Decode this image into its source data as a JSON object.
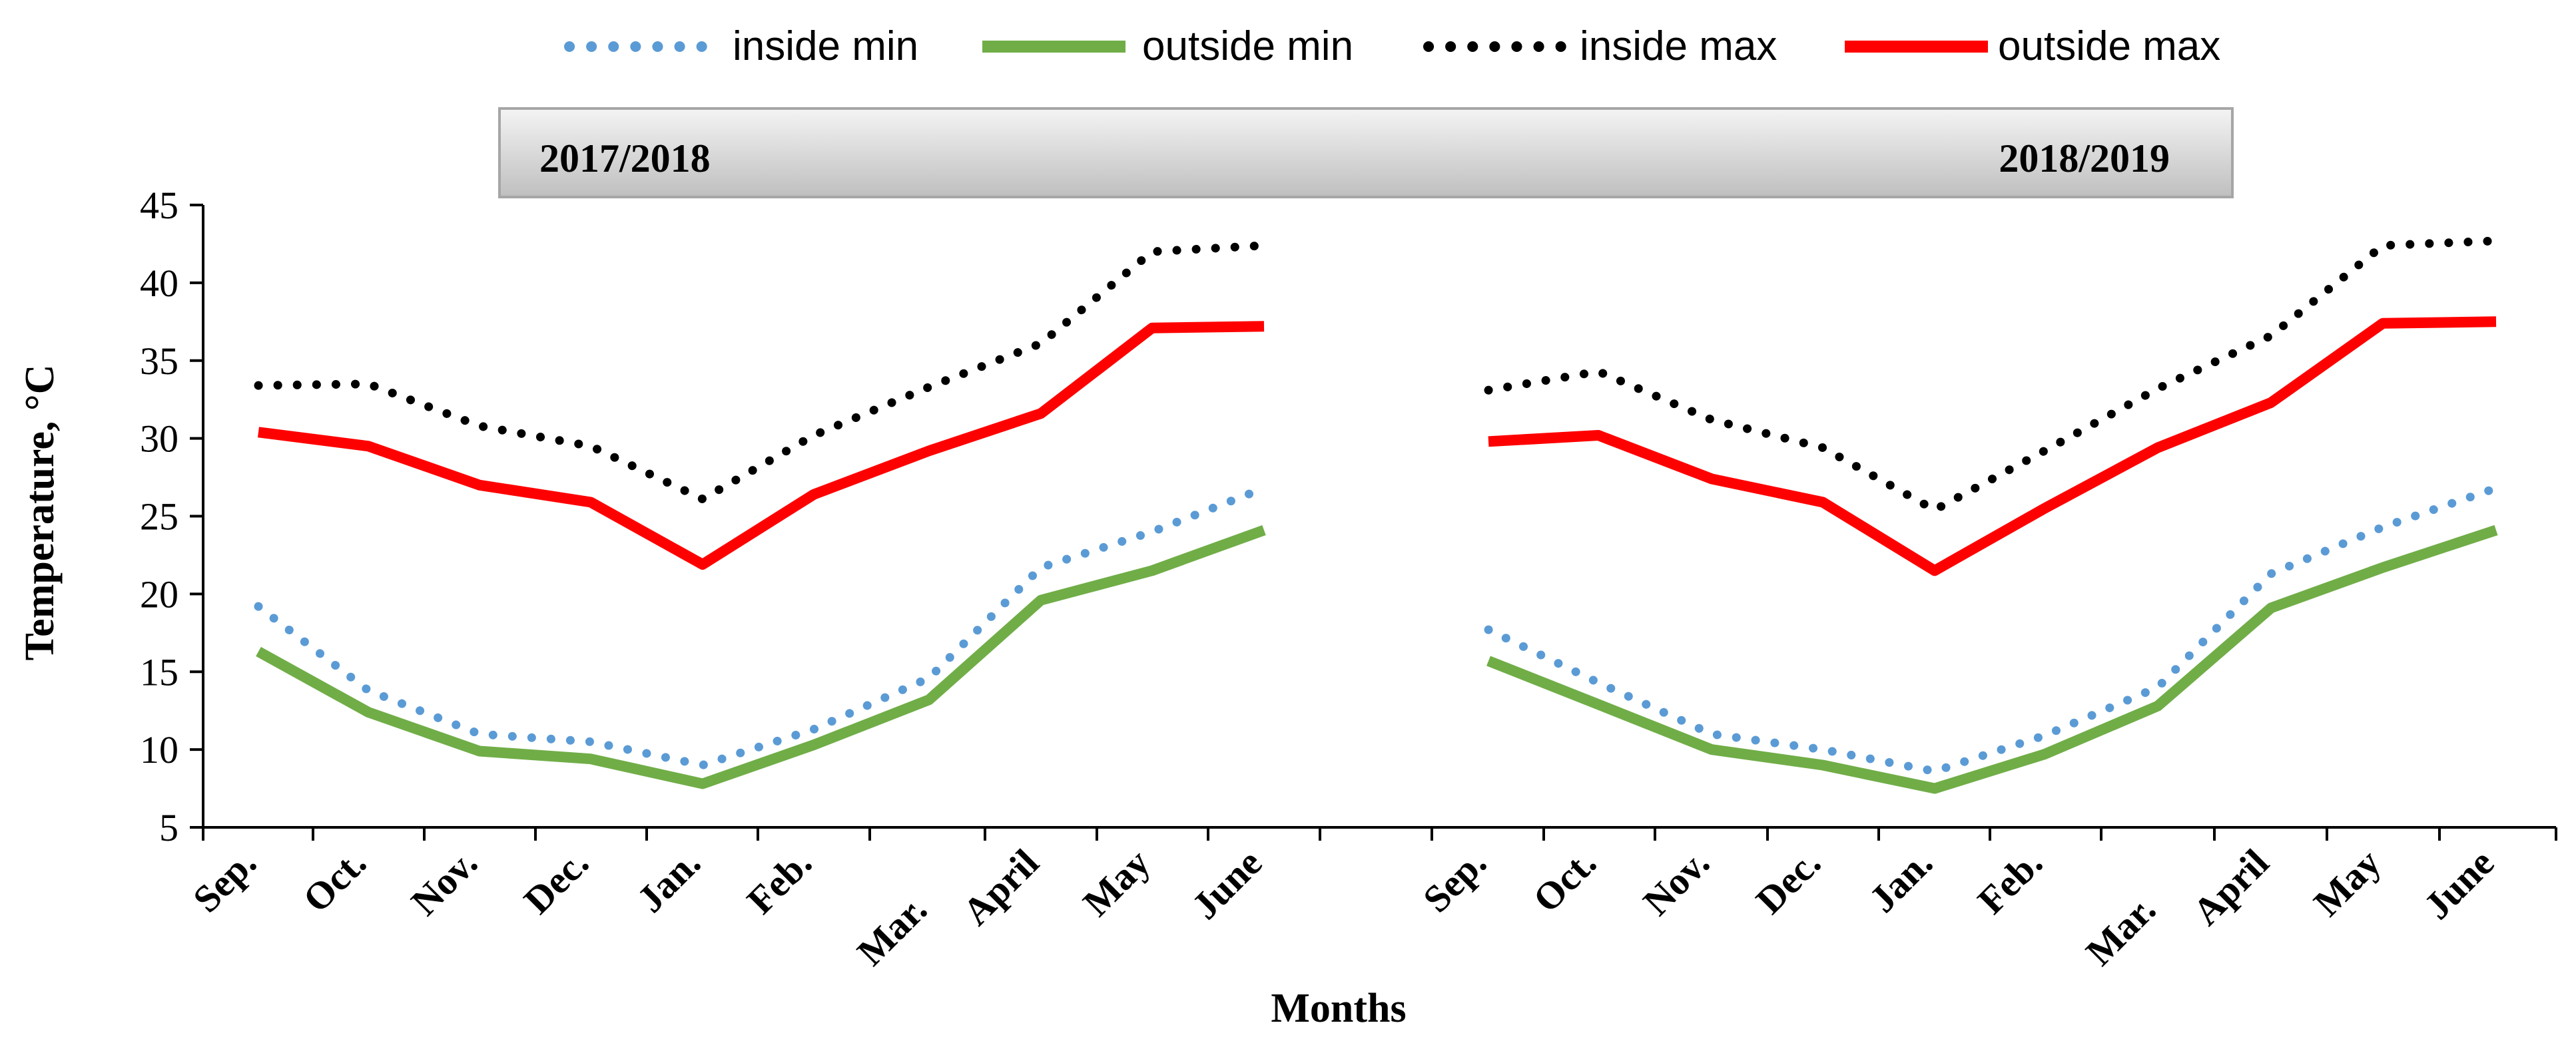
{
  "chart_data": {
    "type": "line",
    "title": "",
    "xlabel": "Months",
    "ylabel": "Temperature, °C",
    "ylim": [
      5,
      45
    ],
    "yticks": [
      5,
      10,
      15,
      20,
      25,
      30,
      35,
      40,
      45
    ],
    "grid": false,
    "legend_position": "top",
    "seasons": [
      "2017/2018",
      "2018/2019"
    ],
    "categories": [
      "Sep.",
      "Oct.",
      "Nov.",
      "Dec.",
      "Jan.",
      "Feb.",
      "Mar.",
      "April",
      "May",
      "June"
    ],
    "panels": [
      {
        "season": "2017/2018",
        "series": [
          {
            "name": "inside min",
            "values": [
              19.2,
              13.8,
              11.0,
              10.5,
              9.0,
              11.3,
              14.6,
              21.7,
              24.0,
              26.8
            ]
          },
          {
            "name": "outside min",
            "values": [
              16.3,
              12.4,
              9.9,
              9.4,
              7.8,
              10.3,
              13.2,
              19.6,
              21.5,
              24.1
            ]
          },
          {
            "name": "inside max",
            "values": [
              33.4,
              33.5,
              30.8,
              29.5,
              26.1,
              30.2,
              33.3,
              36.1,
              42.0,
              42.4
            ]
          },
          {
            "name": "outside max",
            "values": [
              30.4,
              29.5,
              27.0,
              25.9,
              21.9,
              26.4,
              29.2,
              31.6,
              37.1,
              37.2
            ]
          }
        ]
      },
      {
        "season": "2018/2019",
        "series": [
          {
            "name": "inside min",
            "values": [
              17.7,
              14.3,
              11.0,
              10.0,
              8.6,
              10.9,
              14.0,
              21.3,
              24.3,
              26.8
            ]
          },
          {
            "name": "outside min",
            "values": [
              15.7,
              12.9,
              10.0,
              9.0,
              7.5,
              9.7,
              12.8,
              19.1,
              21.7,
              24.1
            ]
          },
          {
            "name": "inside max",
            "values": [
              33.1,
              34.3,
              31.2,
              29.4,
              25.4,
              29.2,
              33.2,
              36.6,
              42.4,
              42.7
            ]
          },
          {
            "name": "outside max",
            "values": [
              29.8,
              30.2,
              27.4,
              25.9,
              21.5,
              25.5,
              29.4,
              32.3,
              37.4,
              37.5
            ]
          }
        ]
      }
    ],
    "series_styles": {
      "inside min": {
        "color": "#5b9bd5",
        "dash": "dotted"
      },
      "outside min": {
        "color": "#70ad47",
        "dash": "solid"
      },
      "inside max": {
        "color": "#000000",
        "dash": "dotted"
      },
      "outside max": {
        "color": "#ff0000",
        "dash": "solid"
      }
    }
  }
}
